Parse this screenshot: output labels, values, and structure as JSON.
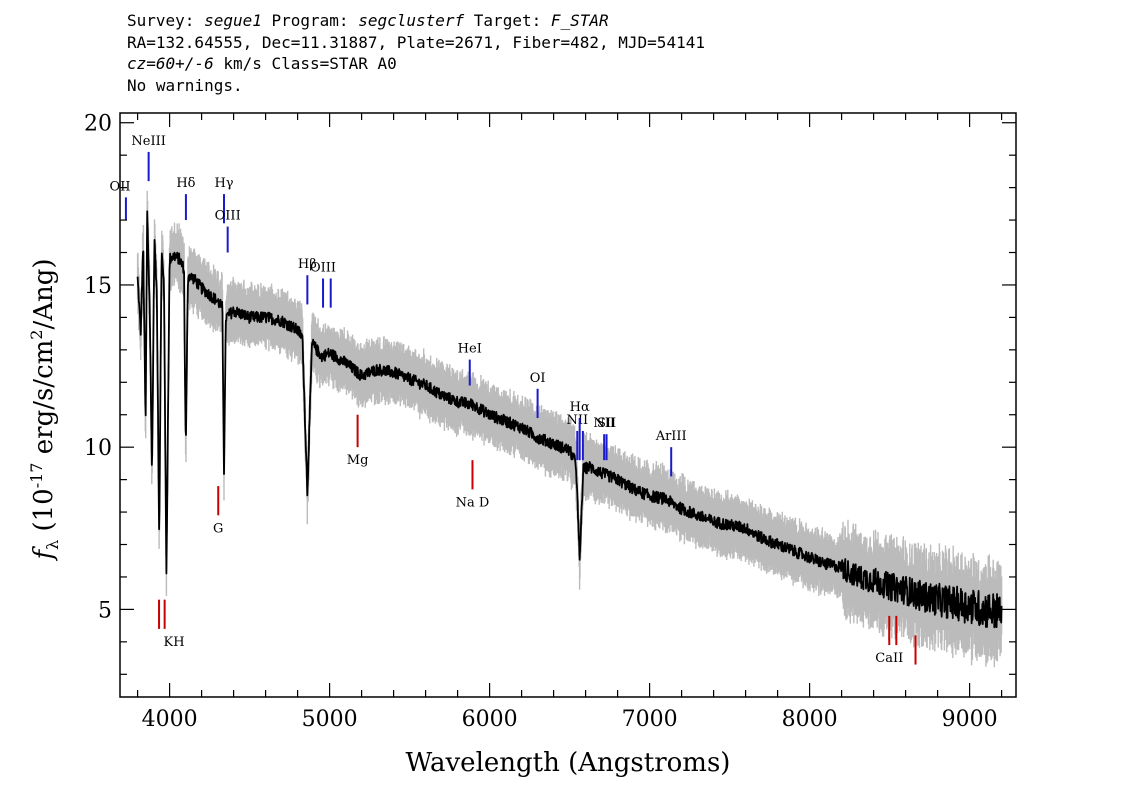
{
  "header": {
    "line1": "Survey: segue1 Program: segclusterf Target: F_STAR",
    "line2": "RA=132.64555, Dec=11.31887, Plate=2671, Fiber=482, MJD=54141",
    "line3": "cz=60+/-6 km/s Class=STAR A0",
    "line4": "No warnings."
  },
  "chart_data": {
    "type": "line",
    "xlabel": "Wavelength (Angstroms)",
    "ylabel": "f_λ (10^-17 erg/s/cm^2/Ang)",
    "xlim": [
      3690,
      9290
    ],
    "ylim": [
      2.3,
      20.3
    ],
    "x_ticks": [
      4000,
      5000,
      6000,
      7000,
      8000,
      9000
    ],
    "y_ticks": [
      5,
      10,
      15,
      20
    ],
    "series": [
      {
        "color": "#000000",
        "x": [
          3800,
          3820,
          3835,
          3850,
          3860,
          3875,
          3890,
          3905,
          3920,
          3935,
          3950,
          3965,
          3980,
          4000,
          4030,
          4060,
          4090,
          4101,
          4115,
          4150,
          4200,
          4250,
          4300,
          4330,
          4340,
          4352,
          4400,
          4500,
          4600,
          4700,
          4800,
          4830,
          4861,
          4890,
          4950,
          5000,
          5100,
          5200,
          5300,
          5400,
          5500,
          5600,
          5700,
          5800,
          5900,
          6000,
          6100,
          6200,
          6300,
          6400,
          6500,
          6540,
          6563,
          6585,
          6620,
          6700,
          6800,
          6900,
          7000,
          7100,
          7200,
          7300,
          7400,
          7500,
          7600,
          7700,
          7800,
          7900,
          8000,
          8100,
          8200,
          8300,
          8400,
          8500,
          8600,
          8700,
          8800,
          8900,
          9000,
          9100,
          9200
        ],
        "y": [
          15.2,
          13.5,
          16.3,
          10.6,
          17.2,
          14.5,
          9.2,
          16.4,
          14.8,
          7.2,
          16.0,
          15.0,
          6.0,
          15.8,
          15.9,
          15.8,
          15.5,
          9.9,
          15.3,
          15.2,
          14.9,
          14.7,
          14.5,
          14.3,
          9.3,
          14.0,
          14.2,
          14.0,
          14.0,
          13.9,
          13.6,
          13.4,
          8.6,
          13.2,
          12.8,
          12.9,
          12.6,
          12.2,
          12.4,
          12.3,
          12.1,
          11.9,
          11.6,
          11.4,
          11.3,
          11.0,
          10.8,
          10.6,
          10.3,
          10.1,
          9.9,
          9.5,
          6.5,
          9.3,
          9.4,
          9.2,
          9.0,
          8.7,
          8.5,
          8.4,
          8.1,
          7.9,
          7.7,
          7.6,
          7.5,
          7.2,
          7.0,
          6.8,
          6.6,
          6.4,
          6.3,
          6.0,
          5.9,
          5.7,
          5.6,
          5.4,
          5.3,
          5.2,
          5.1,
          5.0,
          4.9
        ]
      }
    ],
    "line_markers": [
      {
        "label": "OII",
        "x": 3727,
        "y_top": 17.7,
        "y_bottom": 17.0,
        "color": "#1a1acd"
      },
      {
        "label": "NeIII",
        "x": 3869,
        "y_top": 19.1,
        "y_bottom": 18.2,
        "color": "#1a1acd"
      },
      {
        "label": "Hδ",
        "x": 4102,
        "y_top": 17.8,
        "y_bottom": 17.0,
        "color": "#1a1acd"
      },
      {
        "label": "Hγ",
        "x": 4340,
        "y_top": 17.8,
        "y_bottom": 16.9,
        "color": "#1a1acd"
      },
      {
        "label": "OIII",
        "x": 4363,
        "y_top": 16.8,
        "y_bottom": 16.0,
        "color": "#1a1acd"
      },
      {
        "label": "Hβ",
        "x": 4861,
        "y_top": 15.3,
        "y_bottom": 14.4,
        "color": "#1a1acd"
      },
      {
        "label": "OIII",
        "x": 4959,
        "y_top": 15.2,
        "y_bottom": 14.3,
        "color": "#1a1acd"
      },
      {
        "label": "",
        "x": 5007,
        "y_top": 15.2,
        "y_bottom": 14.3,
        "color": "#1a1acd"
      },
      {
        "label": "HeI",
        "x": 5876,
        "y_top": 12.7,
        "y_bottom": 11.9,
        "color": "#1a1acd"
      },
      {
        "label": "OI",
        "x": 6300,
        "y_top": 11.8,
        "y_bottom": 10.9,
        "color": "#1a1acd"
      },
      {
        "label": "NII",
        "x": 6548,
        "y_top": 10.5,
        "y_bottom": 9.6,
        "color": "#1a1acd"
      },
      {
        "label": "Hα",
        "x": 6563,
        "y_top": 10.9,
        "y_bottom": 9.6,
        "color": "#1a1acd"
      },
      {
        "label": "",
        "x": 6583,
        "y_top": 10.5,
        "y_bottom": 9.6,
        "color": "#1a1acd"
      },
      {
        "label": "NII",
        "x": 6716,
        "y_top": 10.4,
        "y_bottom": 9.6,
        "color": "#1a1acd"
      },
      {
        "label": "SII",
        "x": 6731,
        "y_top": 10.4,
        "y_bottom": 9.6,
        "color": "#1a1acd"
      },
      {
        "label": "ArIII",
        "x": 7135,
        "y_top": 10.0,
        "y_bottom": 9.1,
        "color": "#1a1acd"
      },
      {
        "label": "Mg",
        "x": 5175,
        "y_top": 11.0,
        "y_bottom": 10.0,
        "color": "#cc0000"
      },
      {
        "label": "G",
        "x": 4304,
        "y_top": 8.8,
        "y_bottom": 7.9,
        "color": "#cc0000"
      },
      {
        "label": "Na D",
        "x": 5893,
        "y_top": 9.6,
        "y_bottom": 8.7,
        "color": "#cc0000"
      },
      {
        "label": "KH",
        "x": 3934,
        "y_top": 5.3,
        "y_bottom": 4.4,
        "color": "#cc0000"
      },
      {
        "label": "",
        "x": 3969,
        "y_top": 5.3,
        "y_bottom": 4.4,
        "color": "#cc0000"
      },
      {
        "label": "CaII",
        "x": 8498,
        "y_top": 4.8,
        "y_bottom": 3.9,
        "color": "#cc0000"
      },
      {
        "label": "",
        "x": 8542,
        "y_top": 4.8,
        "y_bottom": 3.9,
        "color": "#cc0000"
      },
      {
        "label": "",
        "x": 8662,
        "y_top": 4.2,
        "y_bottom": 3.3,
        "color": "#cc0000"
      }
    ],
    "grid": false
  }
}
